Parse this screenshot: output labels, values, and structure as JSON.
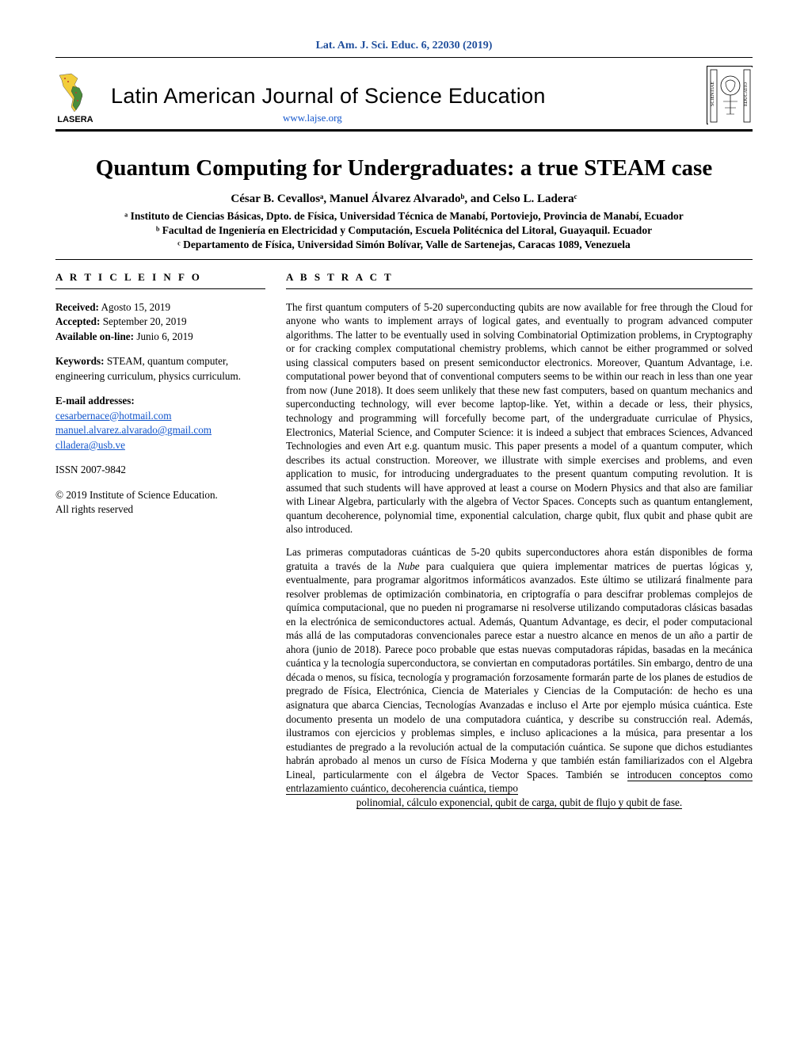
{
  "journal_ref": "Lat. Am. J. Sci. Educ. 6, 22030 (2019)",
  "masthead": {
    "lasera": "LASERA",
    "journal_title": "Latin American Journal of Science Education",
    "url": "www.lajse.org"
  },
  "paper_title": "Quantum Computing for Undergraduates: a true STEAM case",
  "authors_html": "César B. Cevallosᵃ, Manuel Álvarez Alvaradoᵇ, and Celso L. Laderaᶜ",
  "affiliations": {
    "a": "ᵃ Instituto de Ciencias Básicas, Dpto. de Física, Universidad Técnica de Manabí, Portoviejo, Provincia de Manabí, Ecuador",
    "b": "ᵇ Facultad de Ingeniería en Electricidad y Computación, Escuela Politécnica del Litoral, Guayaquil. Ecuador",
    "c": "ᶜ Departamento de Física, Universidad Simón Bolívar, Valle de Sartenejas, Caracas 1089, Venezuela"
  },
  "article_info": {
    "heading": "A R T I C L E I N F O",
    "received_label": "Received:",
    "received": " Agosto 15, 2019",
    "accepted_label": "Accepted:",
    "accepted": " September 20, 2019",
    "online_label": "Available on-line:",
    "online": " Junio 6, 2019",
    "keywords_label": "Keywords:",
    "keywords": " STEAM, quantum computer, engineering curriculum, physics curriculum.",
    "email_label": "E-mail addresses:",
    "email1": "cesarbernace@hotmail.com",
    "email2": "manuel.alvarez.alvarado@gmail.com",
    "email3": "clladera@usb.ve",
    "issn": "ISSN 2007-9842",
    "copyright": "© 2019 Institute of Science Education.",
    "rights": "All rights reserved"
  },
  "abstract": {
    "heading": "A B S T R A C T",
    "en": "The first quantum computers of 5-20 superconducting qubits are now available for free through the Cloud for anyone who wants to implement arrays of logical gates, and eventually to program advanced computer algorithms. The latter to be eventually used in solving Combinatorial Optimization problems, in Cryptography or for cracking complex computational chemistry problems, which cannot be either programmed or solved using classical computers based on present semiconductor electronics. Moreover, Quantum Advantage, i.e. computational power beyond that of conventional computers seems to be within our reach in less than one year from now (June 2018). It does seem unlikely that these new fast computers, based on quantum mechanics and superconducting technology, will ever become laptop-like. Yet, within a decade or less, their physics, technology and programming will forcefully become part, of the undergraduate curriculae of Physics, Electronics, Material Science, and Computer Science: it is indeed a subject that embraces Sciences, Advanced Technologies and even Art e.g. quantum music. This paper presents a model of a quantum computer, which describes its actual construction. Moreover, we illustrate with simple exercises and problems, and even application to music, for introducing undergraduates to the present quantum computing revolution. It is assumed that such students will have approved at least a course on Modern Physics and that also are familiar with Linear Algebra, particularly with the algebra of Vector Spaces. Concepts such as quantum entanglement, quantum decoherence, polynomial time, exponential calculation, charge qubit, flux qubit and phase qubit are also introduced.",
    "es_main": "Las primeras computadoras cuánticas de 5-20 qubits superconductores ahora están disponibles de forma gratuita a través de la Nube para cualquiera que quiera implementar matrices de puertas lógicas y, eventualmente, para programar algoritmos informáticos avanzados. Este último se utilizará finalmente para resolver problemas de optimización combinatoria, en criptografía o para descifrar problemas complejos de química computacional, que no pueden ni programarse ni resolverse utilizando computadoras clásicas basadas en la electrónica de semiconductores actual. Además, Quantum Advantage, es decir, el poder computacional más allá de las computadoras convencionales parece estar a nuestro alcance en menos de un año a partir de ahora (junio de 2018). Parece poco probable que estas nuevas computadoras rápidas, basadas en la mecánica cuántica y la tecnología superconductora, se conviertan en computadoras portátiles. Sin embargo, dentro de una década o menos, su física, tecnología y programación forzosamente formarán parte de los planes de estudios de pregrado de Física, Electrónica, Ciencia de Materiales y Ciencias de la Computación: de hecho es una asignatura que abarca Ciencias, Tecnologías Avanzadas e incluso el Arte por ejemplo música cuántica. Este documento presenta un modelo de una computadora cuántica, y describe su construcción real. Además, ilustramos con ejercicios y problemas simples, e incluso aplicaciones a la música, para presentar a los estudiantes de pregrado a la revolución actual de la computación cuántica. Se supone que dichos estudiantes habrán aprobado al menos un curso de Física Moderna y que también están familiarizados con el Algebra Lineal, particularmente con el álgebra de Vector Spaces. También se ",
    "es_underlined1": "introducen conceptos como entrlazamiento cuántico, decoherencia cuántica, tiempo",
    "es_underlined2": "polinomial, cálculo exponencial, qubit de carga, qubit de flujo y qubit de fase."
  },
  "colors": {
    "link": "#1155cc",
    "ref_blue": "#1f4e9c",
    "map_yellow": "#f2cd3a",
    "map_green": "#4a8d3a"
  }
}
